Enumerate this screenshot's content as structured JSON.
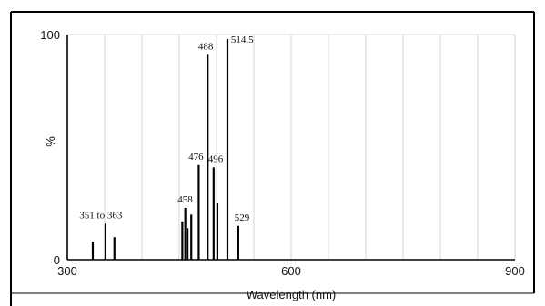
{
  "chart_data": {
    "type": "bar",
    "title": "",
    "xlabel": "Wavelength (nm)",
    "ylabel": "%",
    "xlim": [
      300,
      900
    ],
    "ylim": [
      0,
      100
    ],
    "x_ticks": [
      {
        "value": 300,
        "label": "300"
      },
      {
        "value": 600,
        "label": "600"
      },
      {
        "value": 900,
        "label": "900"
      }
    ],
    "y_ticks": [
      {
        "value": 0,
        "label": "0"
      },
      {
        "value": 100,
        "label": "100"
      }
    ],
    "grid": true,
    "grid_step": 50,
    "legend": "none",
    "lines": [
      {
        "x": 334,
        "y": 8
      },
      {
        "x": 351,
        "y": 16
      },
      {
        "x": 363,
        "y": 10
      },
      {
        "x": 454,
        "y": 17
      },
      {
        "x": 458,
        "y": 23
      },
      {
        "x": 461,
        "y": 14
      },
      {
        "x": 466,
        "y": 20
      },
      {
        "x": 476,
        "y": 42
      },
      {
        "x": 488,
        "y": 91
      },
      {
        "x": 496,
        "y": 41
      },
      {
        "x": 501,
        "y": 25
      },
      {
        "x": 514.5,
        "y": 98
      },
      {
        "x": 529,
        "y": 15
      }
    ],
    "annotations": [
      {
        "text": "351 to 363",
        "x": 351,
        "y": 16
      },
      {
        "text": "458",
        "x": 458,
        "y": 23
      },
      {
        "text": "476",
        "x": 476,
        "y": 42
      },
      {
        "text": "488",
        "x": 488,
        "y": 91
      },
      {
        "text": "496",
        "x": 496,
        "y": 41
      },
      {
        "text": "514.5",
        "x": 514.5,
        "y": 98
      },
      {
        "text": "529",
        "x": 529,
        "y": 15
      }
    ]
  }
}
